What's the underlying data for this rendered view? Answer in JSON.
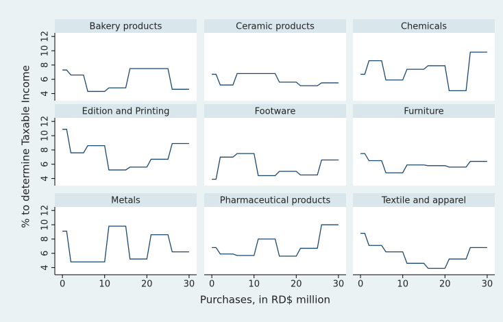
{
  "ylabel": "% to determine Taxable Income",
  "xlabel": "Purchases, in RD$ million",
  "xlim": [
    -1.8,
    31.8
  ],
  "xticks": [
    0,
    10,
    20,
    30
  ],
  "ylim": [
    3,
    12.5
  ],
  "yticks": [
    4,
    6,
    8,
    10,
    12
  ],
  "line_color": "#1a476f",
  "chart_data": [
    {
      "type": "line",
      "title": "Bakery products",
      "x": [
        0,
        1,
        2,
        3,
        4,
        5,
        6,
        7,
        8,
        9,
        10,
        11,
        12,
        13,
        14,
        15,
        16,
        17,
        18,
        19,
        20,
        21,
        22,
        23,
        24,
        25,
        26,
        27,
        28,
        29,
        30
      ],
      "values": [
        7.3,
        7.3,
        6.6,
        6.6,
        6.6,
        6.6,
        4.3,
        4.3,
        4.3,
        4.3,
        4.3,
        4.8,
        4.8,
        4.8,
        4.8,
        4.8,
        7.5,
        7.5,
        7.5,
        7.5,
        7.5,
        7.5,
        7.5,
        7.5,
        7.5,
        7.5,
        4.6,
        4.6,
        4.6,
        4.6,
        4.6
      ]
    },
    {
      "type": "line",
      "title": "Ceramic products",
      "x": [
        0,
        1,
        2,
        3,
        4,
        5,
        6,
        7,
        8,
        9,
        10,
        11,
        12,
        13,
        14,
        15,
        16,
        17,
        18,
        19,
        20,
        21,
        22,
        23,
        24,
        25,
        26,
        27,
        28,
        29,
        30
      ],
      "values": [
        6.7,
        6.7,
        5.2,
        5.2,
        5.2,
        5.2,
        6.8,
        6.8,
        6.8,
        6.8,
        6.8,
        6.8,
        6.8,
        6.8,
        6.8,
        6.8,
        5.6,
        5.6,
        5.6,
        5.6,
        5.6,
        5.1,
        5.1,
        5.1,
        5.1,
        5.1,
        5.5,
        5.5,
        5.5,
        5.5,
        5.5
      ]
    },
    {
      "type": "line",
      "title": "Chemicals",
      "x": [
        0,
        1,
        2,
        3,
        4,
        5,
        6,
        7,
        8,
        9,
        10,
        11,
        12,
        13,
        14,
        15,
        16,
        17,
        18,
        19,
        20,
        21,
        22,
        23,
        24,
        25,
        26,
        27,
        28,
        29,
        30
      ],
      "values": [
        6.7,
        6.7,
        8.6,
        8.6,
        8.6,
        8.6,
        5.9,
        5.9,
        5.9,
        5.9,
        5.9,
        7.4,
        7.4,
        7.4,
        7.4,
        7.4,
        7.9,
        7.9,
        7.9,
        7.9,
        7.9,
        4.4,
        4.4,
        4.4,
        4.4,
        4.4,
        9.8,
        9.8,
        9.8,
        9.8,
        9.8
      ]
    },
    {
      "type": "line",
      "title": "Edition and Printing",
      "x": [
        0,
        1,
        2,
        3,
        4,
        5,
        6,
        7,
        8,
        9,
        10,
        11,
        12,
        13,
        14,
        15,
        16,
        17,
        18,
        19,
        20,
        21,
        22,
        23,
        24,
        25,
        26,
        27,
        28,
        29,
        30
      ],
      "values": [
        10.9,
        10.9,
        7.6,
        7.6,
        7.6,
        7.6,
        8.6,
        8.6,
        8.6,
        8.6,
        8.6,
        5.2,
        5.2,
        5.2,
        5.2,
        5.2,
        5.6,
        5.6,
        5.6,
        5.6,
        5.6,
        6.7,
        6.7,
        6.7,
        6.7,
        6.7,
        8.9,
        8.9,
        8.9,
        8.9,
        8.9
      ]
    },
    {
      "type": "line",
      "title": "Footware",
      "x": [
        0,
        1,
        2,
        3,
        4,
        5,
        6,
        7,
        8,
        9,
        10,
        11,
        12,
        13,
        14,
        15,
        16,
        17,
        18,
        19,
        20,
        21,
        22,
        23,
        24,
        25,
        26,
        27,
        28,
        29,
        30
      ],
      "values": [
        3.9,
        3.9,
        7.0,
        7.0,
        7.0,
        7.0,
        7.5,
        7.5,
        7.5,
        7.5,
        7.5,
        4.4,
        4.4,
        4.4,
        4.4,
        4.4,
        5.0,
        5.0,
        5.0,
        5.0,
        5.0,
        4.5,
        4.5,
        4.5,
        4.5,
        4.5,
        6.6,
        6.6,
        6.6,
        6.6,
        6.6
      ]
    },
    {
      "type": "line",
      "title": "Furniture",
      "x": [
        0,
        1,
        2,
        3,
        4,
        5,
        6,
        7,
        8,
        9,
        10,
        11,
        12,
        13,
        14,
        15,
        16,
        17,
        18,
        19,
        20,
        21,
        22,
        23,
        24,
        25,
        26,
        27,
        28,
        29,
        30
      ],
      "values": [
        7.5,
        7.5,
        6.5,
        6.5,
        6.5,
        6.5,
        4.8,
        4.8,
        4.8,
        4.8,
        4.8,
        5.9,
        5.9,
        5.9,
        5.9,
        5.9,
        5.8,
        5.8,
        5.8,
        5.8,
        5.8,
        5.6,
        5.6,
        5.6,
        5.6,
        5.6,
        6.4,
        6.4,
        6.4,
        6.4,
        6.4
      ]
    },
    {
      "type": "line",
      "title": "Metals",
      "x": [
        0,
        1,
        2,
        3,
        4,
        5,
        6,
        7,
        8,
        9,
        10,
        11,
        12,
        13,
        14,
        15,
        16,
        17,
        18,
        19,
        20,
        21,
        22,
        23,
        24,
        25,
        26,
        27,
        28,
        29,
        30
      ],
      "values": [
        9.1,
        9.1,
        4.8,
        4.8,
        4.8,
        4.8,
        4.8,
        4.8,
        4.8,
        4.8,
        4.8,
        9.8,
        9.8,
        9.8,
        9.8,
        9.8,
        5.2,
        5.2,
        5.2,
        5.2,
        5.2,
        8.6,
        8.6,
        8.6,
        8.6,
        8.6,
        6.2,
        6.2,
        6.2,
        6.2,
        6.2
      ]
    },
    {
      "type": "line",
      "title": "Pharmaceutical products",
      "x": [
        0,
        1,
        2,
        3,
        4,
        5,
        6,
        7,
        8,
        9,
        10,
        11,
        12,
        13,
        14,
        15,
        16,
        17,
        18,
        19,
        20,
        21,
        22,
        23,
        24,
        25,
        26,
        27,
        28,
        29,
        30
      ],
      "values": [
        6.8,
        6.8,
        5.9,
        5.9,
        5.9,
        5.9,
        5.7,
        5.7,
        5.7,
        5.7,
        5.7,
        8.0,
        8.0,
        8.0,
        8.0,
        8.0,
        5.6,
        5.6,
        5.6,
        5.6,
        5.6,
        6.7,
        6.7,
        6.7,
        6.7,
        6.7,
        10.0,
        10.0,
        10.0,
        10.0,
        10.0
      ]
    },
    {
      "type": "line",
      "title": "Textile and apparel",
      "x": [
        0,
        1,
        2,
        3,
        4,
        5,
        6,
        7,
        8,
        9,
        10,
        11,
        12,
        13,
        14,
        15,
        16,
        17,
        18,
        19,
        20,
        21,
        22,
        23,
        24,
        25,
        26,
        27,
        28,
        29,
        30
      ],
      "values": [
        8.8,
        8.8,
        7.1,
        7.1,
        7.1,
        7.1,
        6.2,
        6.2,
        6.2,
        6.2,
        6.2,
        4.6,
        4.6,
        4.6,
        4.6,
        4.6,
        3.9,
        3.9,
        3.9,
        3.9,
        3.9,
        5.2,
        5.2,
        5.2,
        5.2,
        5.2,
        6.8,
        6.8,
        6.8,
        6.8,
        6.8
      ]
    }
  ]
}
